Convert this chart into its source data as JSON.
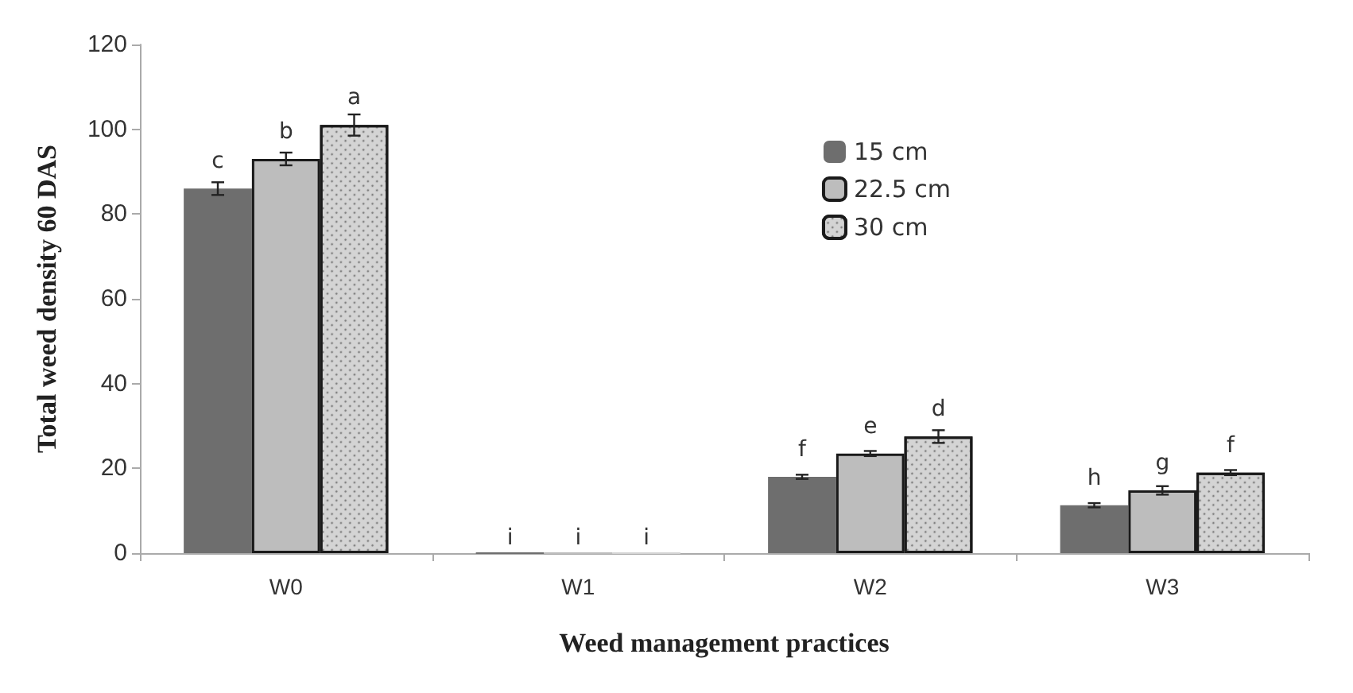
{
  "chart_data": {
    "type": "bar",
    "xlabel": "Weed management practices",
    "ylabel": "Total weed density 60 DAS",
    "categories": [
      "W0",
      "W1",
      "W2",
      "W3"
    ],
    "series": [
      {
        "name": "15 cm",
        "color": "#6e6e6e",
        "values": [
          86,
          0,
          18,
          11.3
        ],
        "errors": [
          1.5,
          null,
          0.5,
          0.5
        ],
        "value_labels": [
          "c",
          "i",
          "f",
          "h"
        ]
      },
      {
        "name": "22.5 cm",
        "color": "#bdbdbd",
        "values": [
          93,
          0,
          23.5,
          14.8
        ],
        "errors": [
          1.5,
          null,
          0.6,
          1
        ],
        "value_labels": [
          "b",
          "i",
          "e",
          "g"
        ]
      },
      {
        "name": "30 cm",
        "color": "#d4d4d4",
        "values": [
          101,
          0,
          27.5,
          19
        ],
        "errors": [
          2.5,
          null,
          1.5,
          0.6
        ],
        "value_labels": [
          "a",
          "i",
          "d",
          "f"
        ]
      }
    ],
    "ylim": [
      0,
      120
    ],
    "yticks": [
      0,
      20,
      40,
      60,
      80,
      100,
      120
    ],
    "grid": false,
    "legend": "top right"
  }
}
